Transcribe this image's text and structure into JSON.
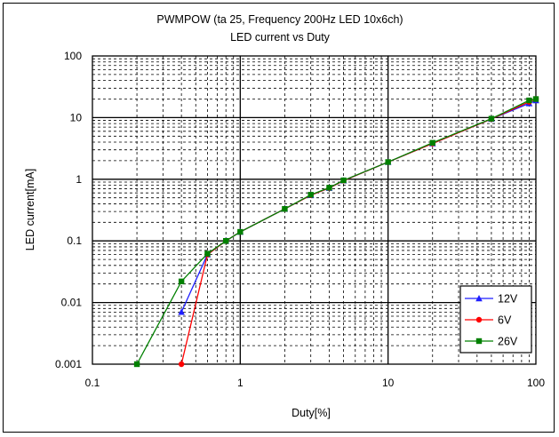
{
  "chart_data": {
    "type": "line",
    "title": "PWMPOW (ta 25, Frequency 200Hz LED 10x6ch)",
    "subtitle": "LED current vs Duty",
    "xlabel": "Duty[%]",
    "ylabel": "LED current[mA]",
    "x_scale": "log",
    "y_scale": "log",
    "xlim": [
      0.1,
      100
    ],
    "ylim": [
      0.001,
      100
    ],
    "x_tick_labels": [
      "0.1",
      "1",
      "10",
      "100"
    ],
    "y_tick_labels": [
      "0.001",
      "0.01",
      "0.1",
      "1",
      "10",
      "100"
    ],
    "grid": true,
    "legend_position": "bottom-right",
    "series": [
      {
        "name": "12V",
        "color": "#1f1fff",
        "marker": "triangle",
        "x": [
          0.4,
          0.6,
          0.8,
          1,
          2,
          3,
          4,
          5,
          10,
          20,
          50,
          90,
          100
        ],
        "y": [
          0.007,
          0.06,
          0.1,
          0.14,
          0.33,
          0.55,
          0.72,
          0.95,
          1.9,
          3.8,
          9.5,
          17,
          19
        ]
      },
      {
        "name": "6V",
        "color": "#ff0000",
        "marker": "circle",
        "x": [
          0.4,
          0.6,
          0.8,
          1,
          2,
          3,
          4,
          5,
          10,
          20,
          50,
          90,
          100
        ],
        "y": [
          0.001,
          0.06,
          0.1,
          0.14,
          0.33,
          0.55,
          0.72,
          0.95,
          1.9,
          3.8,
          9.5,
          18,
          20
        ]
      },
      {
        "name": "26V",
        "color": "#008000",
        "marker": "square",
        "x": [
          0.2,
          0.4,
          0.6,
          0.8,
          1,
          2,
          3,
          4,
          5,
          10,
          20,
          50,
          90,
          100
        ],
        "y": [
          0.001,
          0.022,
          0.062,
          0.1,
          0.14,
          0.33,
          0.56,
          0.73,
          0.96,
          1.9,
          3.9,
          9.6,
          19,
          20
        ]
      }
    ]
  }
}
